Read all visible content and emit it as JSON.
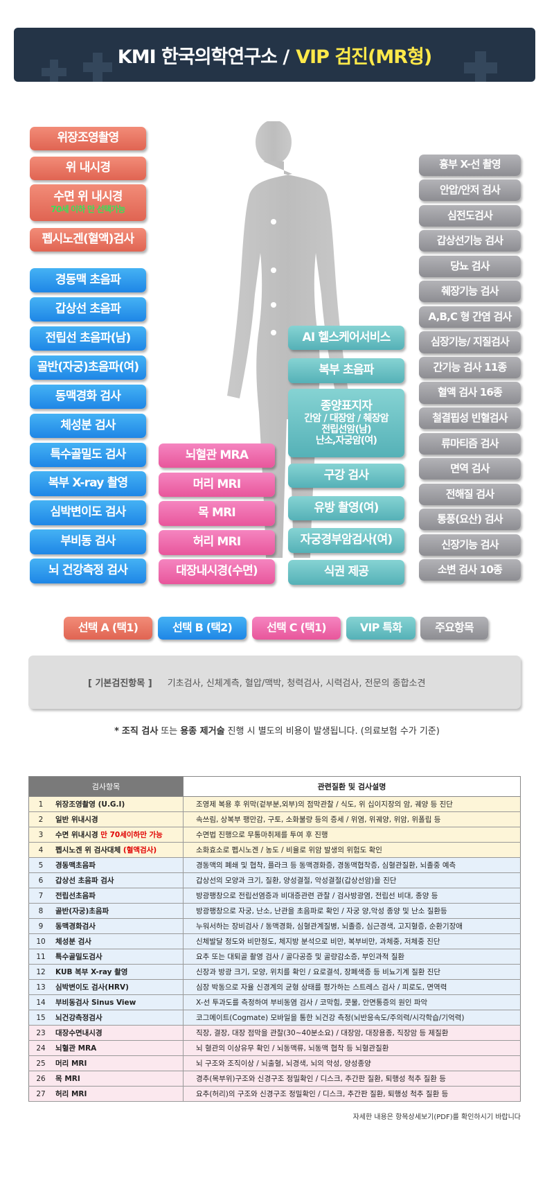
{
  "header": {
    "title_prefix": "KMI 한국의학연구소 /",
    "title_highlight": "VIP 검진(MR형)"
  },
  "groups": [
    {
      "legend": "선택 A (택1)",
      "items": [
        {
          "label": "위장조영촬영"
        },
        {
          "label": "위 내시경"
        },
        {
          "label": "수면 위 내시경",
          "note": "70세 이하 만 선택가능"
        },
        {
          "label": "펩시노겐(혈액)검사"
        }
      ]
    },
    {
      "legend": "선택 B (택2)",
      "items": [
        {
          "label": "경동맥 초음파"
        },
        {
          "label": "갑상선 초음파"
        },
        {
          "label": "전립선 초음파(남)"
        },
        {
          "label": "골반(자궁)초음파(여)"
        },
        {
          "label": "동맥경화 검사"
        },
        {
          "label": "체성분 검사"
        },
        {
          "label": "특수골밀도 검사"
        },
        {
          "label": "복부 X-ray 촬영"
        },
        {
          "label": "심박변이도 검사"
        },
        {
          "label": "부비동 검사"
        },
        {
          "label": "뇌 건강측정 검사"
        }
      ]
    },
    {
      "legend": "선택 C (택1)",
      "items": [
        {
          "label": "뇌혈관 MRA"
        },
        {
          "label": "머리 MRI"
        },
        {
          "label": "목 MRI"
        },
        {
          "label": "허리 MRI"
        },
        {
          "label": "대장내시경(수면)"
        }
      ]
    },
    {
      "legend": "VIP 특화",
      "items": [
        {
          "label": "AI 헬스케어서비스"
        },
        {
          "label": "복부 초음파"
        },
        {
          "label": "종양표지자",
          "lines": [
            "간암 / 대장암 / 췌장암",
            "전립선암(남)",
            "난소,자궁암(여)"
          ]
        },
        {
          "label": "구강 검사"
        },
        {
          "label": "유방 촬영(여)"
        },
        {
          "label": "자궁경부암검사(여)"
        },
        {
          "label": "식권 제공"
        }
      ]
    },
    {
      "legend": "주요항목",
      "items": [
        {
          "label": "흉부 X-선 촬영"
        },
        {
          "label": "안압/안저 검사"
        },
        {
          "label": "심전도검사"
        },
        {
          "label": "갑상선기능 검사"
        },
        {
          "label": "당뇨 검사"
        },
        {
          "label": "췌장기능 검사"
        },
        {
          "label": "A,B,C 형 간염 검사"
        },
        {
          "label": "심장기능/ 지질검사"
        },
        {
          "label": "간기능 검사 11종"
        },
        {
          "label": "혈액 검사 16종"
        },
        {
          "label": "철결핍성 빈혈검사"
        },
        {
          "label": "류마티즘 검사"
        },
        {
          "label": "면역 검사"
        },
        {
          "label": "전해질 검사"
        },
        {
          "label": "통풍(요산) 검사"
        },
        {
          "label": "신장기능 검사"
        },
        {
          "label": "소변 검사 10종"
        }
      ]
    }
  ],
  "basic": {
    "label": "[ 기본검진항목 ]",
    "text": "기초검사, 신체계측, 혈압/맥박, 청력검사, 시력검사, 전문의 종합소견"
  },
  "notice": [
    {
      "text": "*",
      "bold": true
    },
    {
      "text": "조직 검사",
      "bold": true
    },
    {
      "text": "또는",
      "bold": false
    },
    {
      "text": "용종 제거술",
      "bold": true
    },
    {
      "text": "진행 시 별도의 비용이 발생됩니다. (의료보험 수가 기준)",
      "bold": false
    }
  ],
  "table": {
    "header": [
      "검사항목",
      "관련질환 및 검사설명"
    ],
    "sections": [
      {
        "rows": [
          {
            "no": 1,
            "name": "위장조영촬영 (U.G.I)",
            "desc": "조영제 복용 후 위막(겉부분,외부)의 점막관찰 / 식도, 위 십이지장의 암, 궤양 등 진단"
          },
          {
            "no": 2,
            "name": "일반 위내시경",
            "desc": "속쓰림, 상복부 팽만감, 구토, 소화불량 등의 증세 / 위염, 위궤양, 위암, 위폴립 등"
          },
          {
            "no": 3,
            "name": "수면 위내시경",
            "name_note": "만 70세이하만 가능",
            "desc": "수면법 진행으로 무통마취제를 투여 후 진행"
          },
          {
            "no": 4,
            "name": "펩시노겐 위 검사대체",
            "name_note": "(혈액검사)",
            "desc": "소화효소로 펩시노겐 / 농도 / 비율로 위암 발생의 위험도 확인"
          }
        ]
      },
      {
        "rows": [
          {
            "no": 5,
            "name": "경동맥초음파",
            "desc": "경동맥의 폐쇄 및 협착, 플라크 등 동맥경화증, 경동맥협착증, 심혈관질환, 뇌졸중 예측"
          },
          {
            "no": 6,
            "name": "갑상선 초음파 검사",
            "desc": "갑상선의 모양과 크기, 질환, 양성결절, 악성결절(갑상선암)을 진단"
          },
          {
            "no": 7,
            "name": "전립선초음파",
            "desc": "방광팽창으로 전립선염증과 비대증관련 관찰 / 검사방광염, 전립선 비대, 종양 등"
          },
          {
            "no": 8,
            "name": "골반(자궁)초음파",
            "desc": "방광팽창으로 자궁, 난소, 난관을 초음파로 확인 / 자궁 양,악성 종양 및 난소 질환등"
          },
          {
            "no": 9,
            "name": "동맥경화검사",
            "desc": "누워서하는 장비검사 / 동맥경화, 심혈관계질병, 뇌졸증, 심근경색, 고지혈증, 순환기장애"
          },
          {
            "no": 10,
            "name": "체성분 검사",
            "desc": "신체발달 정도와 비만정도, 체지방 분석으로 비만, 복부비만, 과체중, 저체중 진단"
          },
          {
            "no": 11,
            "name": "특수골밀도검사",
            "desc": "요추 또는 대퇴골 촬영 검사 / 골다공증 및 골량감소증, 부인과적 질환"
          },
          {
            "no": 12,
            "name": "KUB 복부 X-ray 촬영",
            "desc": "신장과 방광 크기, 모양, 위치를 확인 / 요로결석, 장폐색증 등 비뇨기계 질환 진단"
          },
          {
            "no": 13,
            "name": "심박변이도 검사(HRV)",
            "desc": "심장 박동으로 자율 신경계의 균형 상태를 평가하는 스트레스 검사 / 피로도, 면역력"
          },
          {
            "no": 14,
            "name": "부비동검사 Sinus View",
            "desc": "X-선 투과도를 측정하여 부비동염 검사 / 코막힘, 콧물, 안면통증의 원인 파악"
          },
          {
            "no": 15,
            "name": "뇌건강측정검사",
            "desc": "코그메이트(Cogmate) 모바일을 통한 뇌건강 측정(뇌반응속도/주의력/시각학습/기억력)"
          }
        ]
      },
      {
        "rows": [
          {
            "no": 23,
            "name": "대장수면내시경",
            "desc": "직장, 결장, 대장 점막을 관찰(30~40분소요) / 대장암, 대장용종, 직장암 등 제질환"
          },
          {
            "no": 24,
            "name": "뇌혈관 MRA",
            "desc": "뇌 혈관의 이상유무 확인 / 뇌동맥류, 뇌동맥 협착 등 뇌혈관질환"
          },
          {
            "no": 25,
            "name": "머리 MRI",
            "desc": "뇌 구조와 조직이상 / 뇌출혈, 뇌경색, 뇌의 악성, 양성종양"
          },
          {
            "no": 26,
            "name": "목 MRI",
            "desc": "경추(목부위)구조와 신경구조 정밀확인 / 디스크, 추간판 질환, 퇴행성 척추 질환 등"
          },
          {
            "no": 27,
            "name": "허리 MRI",
            "desc": "요추(허리)의 구조와 신경구조 정밀확인 / 디스크, 추간판 질환, 퇴행성 척추 질환 등"
          }
        ]
      }
    ]
  },
  "footnote": "자세한 내용은 항목상세보기(PDF)를 확인하시기 바랍니다"
}
